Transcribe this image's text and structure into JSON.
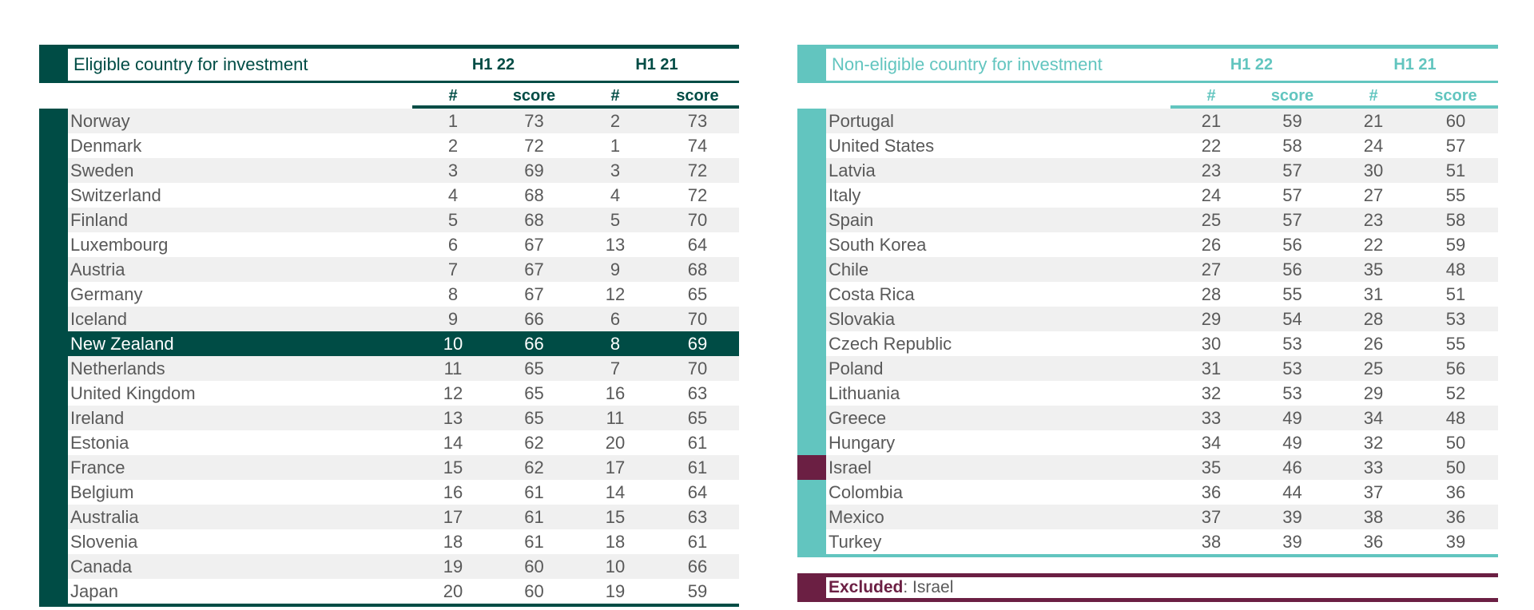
{
  "eligible": {
    "title": "Eligible country for investment",
    "group1": "H1 22",
    "group2": "H1 21",
    "sub_rank": "#",
    "sub_score": "score",
    "highlight_color": "#004c45",
    "rows": [
      {
        "country": "Norway",
        "r22": "1",
        "s22": "73",
        "r21": "2",
        "s21": "73"
      },
      {
        "country": "Denmark",
        "r22": "2",
        "s22": "72",
        "r21": "1",
        "s21": "74"
      },
      {
        "country": "Sweden",
        "r22": "3",
        "s22": "69",
        "r21": "3",
        "s21": "72"
      },
      {
        "country": "Switzerland",
        "r22": "4",
        "s22": "68",
        "r21": "4",
        "s21": "72"
      },
      {
        "country": "Finland",
        "r22": "5",
        "s22": "68",
        "r21": "5",
        "s21": "70"
      },
      {
        "country": "Luxembourg",
        "r22": "6",
        "s22": "67",
        "r21": "13",
        "s21": "64"
      },
      {
        "country": "Austria",
        "r22": "7",
        "s22": "67",
        "r21": "9",
        "s21": "68"
      },
      {
        "country": "Germany",
        "r22": "8",
        "s22": "67",
        "r21": "12",
        "s21": "65"
      },
      {
        "country": "Iceland",
        "r22": "9",
        "s22": "66",
        "r21": "6",
        "s21": "70"
      },
      {
        "country": "New Zealand",
        "r22": "10",
        "s22": "66",
        "r21": "8",
        "s21": "69",
        "highlight": true
      },
      {
        "country": "Netherlands",
        "r22": "11",
        "s22": "65",
        "r21": "7",
        "s21": "70"
      },
      {
        "country": "United Kingdom",
        "r22": "12",
        "s22": "65",
        "r21": "16",
        "s21": "63"
      },
      {
        "country": "Ireland",
        "r22": "13",
        "s22": "65",
        "r21": "11",
        "s21": "65"
      },
      {
        "country": "Estonia",
        "r22": "14",
        "s22": "62",
        "r21": "20",
        "s21": "61"
      },
      {
        "country": "France",
        "r22": "15",
        "s22": "62",
        "r21": "17",
        "s21": "61"
      },
      {
        "country": "Belgium",
        "r22": "16",
        "s22": "61",
        "r21": "14",
        "s21": "64"
      },
      {
        "country": "Australia",
        "r22": "17",
        "s22": "61",
        "r21": "15",
        "s21": "63"
      },
      {
        "country": "Slovenia",
        "r22": "18",
        "s22": "61",
        "r21": "18",
        "s21": "61"
      },
      {
        "country": "Canada",
        "r22": "19",
        "s22": "60",
        "r21": "10",
        "s21": "66"
      },
      {
        "country": "Japan",
        "r22": "20",
        "s22": "60",
        "r21": "19",
        "s21": "59"
      }
    ]
  },
  "non_eligible": {
    "title": "Non-eligible country for investment",
    "group1": "H1 22",
    "group2": "H1 21",
    "sub_rank": "#",
    "sub_score": "score",
    "accent_color": "#62c5bf",
    "excluded_color": "#6b1f43",
    "rows": [
      {
        "country": "Portugal",
        "r22": "21",
        "s22": "59",
        "r21": "21",
        "s21": "60"
      },
      {
        "country": "United States",
        "r22": "22",
        "s22": "58",
        "r21": "24",
        "s21": "57"
      },
      {
        "country": "Latvia",
        "r22": "23",
        "s22": "57",
        "r21": "30",
        "s21": "51"
      },
      {
        "country": "Italy",
        "r22": "24",
        "s22": "57",
        "r21": "27",
        "s21": "55"
      },
      {
        "country": "Spain",
        "r22": "25",
        "s22": "57",
        "r21": "23",
        "s21": "58"
      },
      {
        "country": "South Korea",
        "r22": "26",
        "s22": "56",
        "r21": "22",
        "s21": "59"
      },
      {
        "country": "Chile",
        "r22": "27",
        "s22": "56",
        "r21": "35",
        "s21": "48"
      },
      {
        "country": "Costa Rica",
        "r22": "28",
        "s22": "55",
        "r21": "31",
        "s21": "51"
      },
      {
        "country": "Slovakia",
        "r22": "29",
        "s22": "54",
        "r21": "28",
        "s21": "53"
      },
      {
        "country": "Czech Republic",
        "r22": "30",
        "s22": "53",
        "r21": "26",
        "s21": "55"
      },
      {
        "country": "Poland",
        "r22": "31",
        "s22": "53",
        "r21": "25",
        "s21": "56"
      },
      {
        "country": "Lithuania",
        "r22": "32",
        "s22": "53",
        "r21": "29",
        "s21": "52"
      },
      {
        "country": "Greece",
        "r22": "33",
        "s22": "49",
        "r21": "34",
        "s21": "48"
      },
      {
        "country": "Hungary",
        "r22": "34",
        "s22": "49",
        "r21": "32",
        "s21": "50"
      },
      {
        "country": "Israel",
        "r22": "35",
        "s22": "46",
        "r21": "33",
        "s21": "50",
        "excluded": true
      },
      {
        "country": "Colombia",
        "r22": "36",
        "s22": "44",
        "r21": "37",
        "s21": "36"
      },
      {
        "country": "Mexico",
        "r22": "37",
        "s22": "39",
        "r21": "38",
        "s21": "36"
      },
      {
        "country": "Turkey",
        "r22": "38",
        "s22": "39",
        "r21": "36",
        "s21": "39"
      }
    ]
  },
  "excluded": {
    "label": "Excluded",
    "separator": ":",
    "value": " Israel"
  }
}
